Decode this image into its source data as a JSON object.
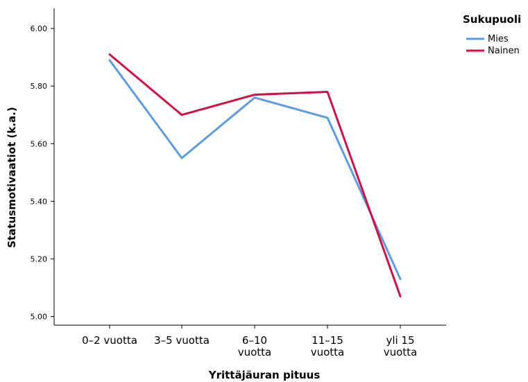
{
  "chart_data": {
    "type": "line",
    "xlabel": "Yrittäjäuran pituus",
    "ylabel": "Statusmotivaatiot (k.a.)",
    "categories": [
      [
        "0–2 vuotta"
      ],
      [
        "3–5 vuotta"
      ],
      [
        "6–10",
        "vuotta"
      ],
      [
        "11–15",
        "vuotta"
      ],
      [
        "yli 15",
        "vuotta"
      ]
    ],
    "ylim": [
      4.97,
      6.07
    ],
    "yticks": [
      "5.00",
      "5.20",
      "5.40",
      "5.60",
      "5.80",
      "6.00"
    ],
    "grid": false,
    "legend": {
      "title": "Sukupuoli",
      "position": "top-right"
    },
    "series": [
      {
        "name": "Mies",
        "color": "#5b9be4",
        "values": [
          5.89,
          5.55,
          5.76,
          5.69,
          5.13
        ]
      },
      {
        "name": "Nainen",
        "color": "#d01045",
        "values": [
          5.91,
          5.7,
          5.77,
          5.78,
          5.07
        ]
      }
    ]
  }
}
